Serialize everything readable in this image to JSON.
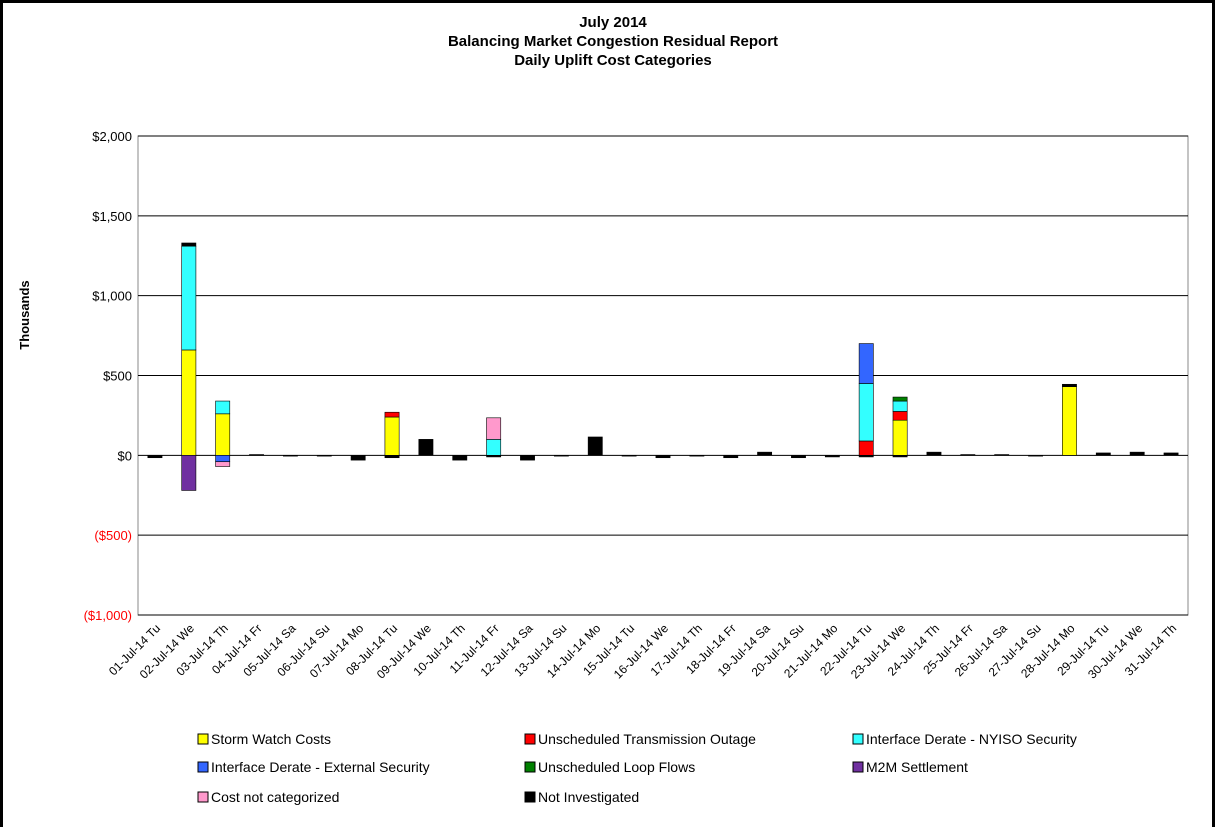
{
  "chart_data": {
    "type": "stacked-bar",
    "title": [
      "July 2014",
      "Balancing Market Congestion Residual Report",
      "Daily Uplift Cost Categories"
    ],
    "y_label": "Thousands",
    "categories": [
      "01-Jul-14 Tu",
      "02-Jul-14 We",
      "03-Jul-14 Th",
      "04-Jul-14 Fr",
      "05-Jul-14 Sa",
      "06-Jul-14 Su",
      "07-Jul-14 Mo",
      "08-Jul-14 Tu",
      "09-Jul-14 We",
      "10-Jul-14 Th",
      "11-Jul-14 Fr",
      "12-Jul-14 Sa",
      "13-Jul-14 Su",
      "14-Jul-14 Mo",
      "15-Jul-14 Tu",
      "16-Jul-14 We",
      "17-Jul-14 Th",
      "18-Jul-14 Fr",
      "19-Jul-14 Sa",
      "20-Jul-14 Su",
      "21-Jul-14 Mo",
      "22-Jul-14 Tu",
      "23-Jul-14 We",
      "24-Jul-14 Th",
      "25-Jul-14 Fr",
      "26-Jul-14 Sa",
      "27-Jul-14 Su",
      "28-Jul-14 Mo",
      "29-Jul-14 Tu",
      "30-Jul-14 We",
      "31-Jul-14 Th"
    ],
    "series": [
      {
        "name": "Storm Watch Costs",
        "color": "#ffff00",
        "values": [
          0,
          660,
          260,
          0,
          0,
          0,
          0,
          240,
          0,
          0,
          0,
          0,
          0,
          0,
          0,
          0,
          0,
          0,
          0,
          0,
          0,
          0,
          220,
          0,
          0,
          0,
          0,
          430,
          0,
          0,
          0
        ]
      },
      {
        "name": "Unscheduled Transmission Outage",
        "color": "#ff0000",
        "values": [
          0,
          0,
          0,
          0,
          0,
          0,
          0,
          30,
          0,
          0,
          0,
          0,
          0,
          0,
          0,
          0,
          0,
          0,
          0,
          0,
          0,
          90,
          55,
          0,
          0,
          0,
          0,
          0,
          0,
          0,
          0
        ]
      },
      {
        "name": "Interface Derate - NYISO Security",
        "color": "#33ffff",
        "values": [
          0,
          650,
          80,
          0,
          0,
          0,
          0,
          0,
          0,
          0,
          100,
          0,
          0,
          0,
          0,
          0,
          0,
          0,
          0,
          0,
          0,
          360,
          65,
          0,
          0,
          0,
          0,
          0,
          0,
          0,
          0
        ]
      },
      {
        "name": "Interface Derate - External Security",
        "color": "#3366ff",
        "values": [
          0,
          0,
          -40,
          0,
          0,
          0,
          0,
          0,
          0,
          0,
          0,
          0,
          0,
          0,
          0,
          0,
          0,
          0,
          0,
          0,
          0,
          250,
          0,
          0,
          0,
          0,
          0,
          0,
          0,
          0,
          0
        ]
      },
      {
        "name": "Unscheduled Loop Flows",
        "color": "#008000",
        "values": [
          0,
          0,
          0,
          0,
          0,
          0,
          0,
          0,
          0,
          0,
          0,
          0,
          0,
          0,
          0,
          0,
          0,
          0,
          0,
          0,
          0,
          0,
          25,
          0,
          0,
          0,
          0,
          0,
          0,
          0,
          0
        ]
      },
      {
        "name": "M2M Settlement",
        "color": "#7030a0",
        "values": [
          0,
          -220,
          0,
          0,
          0,
          0,
          0,
          0,
          0,
          0,
          0,
          0,
          0,
          0,
          0,
          0,
          0,
          0,
          0,
          0,
          0,
          0,
          0,
          0,
          0,
          0,
          0,
          0,
          0,
          0,
          0
        ]
      },
      {
        "name": "Cost not categorized",
        "color": "#ff99cc",
        "values": [
          0,
          0,
          -30,
          0,
          0,
          0,
          0,
          0,
          0,
          0,
          135,
          0,
          0,
          0,
          0,
          0,
          0,
          0,
          0,
          0,
          0,
          0,
          0,
          0,
          0,
          0,
          0,
          0,
          0,
          0,
          0
        ]
      },
      {
        "name": "Not Investigated",
        "color": "#000000",
        "values": [
          -15,
          20,
          0,
          5,
          -5,
          -5,
          -30,
          -15,
          100,
          -30,
          -10,
          -30,
          -5,
          115,
          -5,
          -15,
          -5,
          -15,
          20,
          -15,
          -10,
          -10,
          -10,
          20,
          5,
          5,
          -5,
          15,
          15,
          20,
          15
        ]
      }
    ],
    "ylim": [
      -1000,
      2000
    ],
    "yticks": [
      {
        "value": 2000,
        "label": "$2,000"
      },
      {
        "value": 1500,
        "label": "$1,500"
      },
      {
        "value": 1000,
        "label": "$1,000"
      },
      {
        "value": 500,
        "label": "$500"
      },
      {
        "value": 0,
        "label": "$0"
      },
      {
        "value": -500,
        "label": "($500)"
      },
      {
        "value": -1000,
        "label": "($1,000)"
      }
    ],
    "negative_tick_color": "#ff0000",
    "grid": true,
    "legend": "bottom"
  }
}
